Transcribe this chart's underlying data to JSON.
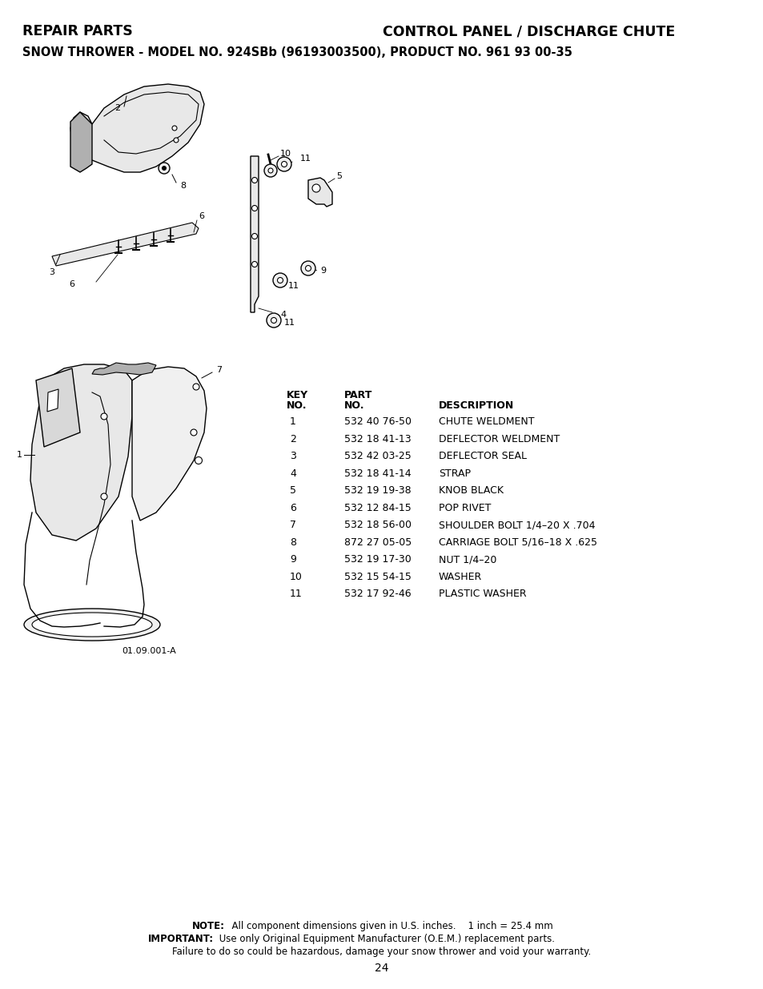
{
  "title_left": "REPAIR PARTS",
  "title_right": "CONTROL PANEL / DISCHARGE CHUTE",
  "subtitle": "SNOW THROWER - MODEL NO. 924SBb (96193003500), PRODUCT NO. 961 93 00-35",
  "table_data": [
    [
      "1",
      "532 40 76-50",
      "CHUTE WELDMENT"
    ],
    [
      "2",
      "532 18 41-13",
      "DEFLECTOR WELDMENT"
    ],
    [
      "3",
      "532 42 03-25",
      "DEFLECTOR SEAL"
    ],
    [
      "4",
      "532 18 41-14",
      "STRAP"
    ],
    [
      "5",
      "532 19 19-38",
      "KNOB BLACK"
    ],
    [
      "6",
      "532 12 84-15",
      "POP RIVET"
    ],
    [
      "7",
      "532 18 56-00",
      "SHOULDER BOLT 1/4–20 X .704"
    ],
    [
      "8",
      "872 27 05-05",
      "CARRIAGE BOLT 5/16–18 X .625"
    ],
    [
      "9",
      "532 19 17-30",
      "NUT 1/4–20"
    ],
    [
      "10",
      "532 15 54-15",
      "WASHER"
    ],
    [
      "11",
      "532 17 92-46",
      "PLASTIC WASHER"
    ]
  ],
  "note_bold": "NOTE:",
  "note_rest": "  All component dimensions given in U.S. inches.    1 inch = 25.4 mm",
  "important_bold": "IMPORTANT:",
  "important_rest": " Use only Original Equipment Manufacturer (O.E.M.) replacement parts.",
  "note_line3": "Failure to do so could be hazardous, damage your snow thrower and void your warranty.",
  "page_number": "24",
  "diagram_label": "01.09.001-A",
  "bg_color": "#ffffff",
  "text_color": "#000000"
}
